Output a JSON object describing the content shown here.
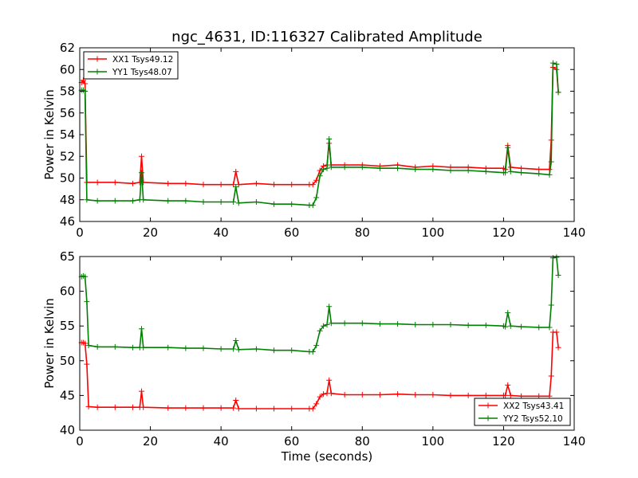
{
  "title": "ngc_4631, ID:116327 Calibrated Amplitude",
  "chart_data": [
    {
      "type": "line",
      "title": "ngc_4631, ID:116327 Calibrated Amplitude",
      "xlabel": "",
      "ylabel": "Power in Kelvin",
      "xlim": [
        0,
        140
      ],
      "ylim": [
        46,
        62
      ],
      "xticks": [
        "0",
        "20",
        "40",
        "60",
        "80",
        "100",
        "120",
        "140"
      ],
      "yticks": [
        "46",
        "48",
        "50",
        "52",
        "54",
        "56",
        "58",
        "60",
        "62"
      ],
      "grid": false,
      "legend_position": "top-left",
      "series": [
        {
          "name": "XX1 Tsys49.12",
          "color": "#ff0000",
          "points": [
            [
              0.5,
              58.8
            ],
            [
              1.0,
              59.0
            ],
            [
              1.5,
              58.7
            ],
            [
              2.0,
              49.6
            ],
            [
              5,
              49.6
            ],
            [
              10,
              49.6
            ],
            [
              15,
              49.5
            ],
            [
              17,
              49.6
            ],
            [
              17.5,
              52.0
            ],
            [
              18,
              49.6
            ],
            [
              25,
              49.5
            ],
            [
              30,
              49.5
            ],
            [
              35,
              49.4
            ],
            [
              40,
              49.4
            ],
            [
              43.5,
              49.4
            ],
            [
              44.2,
              50.6
            ],
            [
              45,
              49.4
            ],
            [
              50,
              49.5
            ],
            [
              55,
              49.4
            ],
            [
              60,
              49.4
            ],
            [
              65,
              49.4
            ],
            [
              66,
              49.4
            ],
            [
              67,
              49.8
            ],
            [
              68,
              50.7
            ],
            [
              69,
              51.1
            ],
            [
              70,
              51.2
            ],
            [
              70.6,
              53.2
            ],
            [
              71.2,
              51.2
            ],
            [
              75,
              51.2
            ],
            [
              80,
              51.2
            ],
            [
              85,
              51.1
            ],
            [
              90,
              51.2
            ],
            [
              95,
              51.0
            ],
            [
              100,
              51.1
            ],
            [
              105,
              51.0
            ],
            [
              110,
              51.0
            ],
            [
              115,
              50.9
            ],
            [
              120,
              50.9
            ],
            [
              120.5,
              50.8
            ],
            [
              121.2,
              53.0
            ],
            [
              122,
              51.0
            ],
            [
              125,
              50.9
            ],
            [
              130,
              50.8
            ],
            [
              133,
              50.8
            ],
            [
              133.5,
              53.5
            ],
            [
              134,
              60.2
            ],
            [
              135,
              60.0
            ],
            [
              135.5,
              57.9
            ]
          ]
        },
        {
          "name": "YY1 Tsys48.07",
          "color": "#008000",
          "points": [
            [
              0.5,
              58.1
            ],
            [
              1.0,
              58.1
            ],
            [
              1.5,
              58.0
            ],
            [
              2.0,
              48.0
            ],
            [
              5,
              47.9
            ],
            [
              10,
              47.9
            ],
            [
              15,
              47.9
            ],
            [
              17,
              48.0
            ],
            [
              17.5,
              50.5
            ],
            [
              18,
              48.0
            ],
            [
              25,
              47.9
            ],
            [
              30,
              47.9
            ],
            [
              35,
              47.8
            ],
            [
              40,
              47.8
            ],
            [
              43.5,
              47.8
            ],
            [
              44.2,
              49.2
            ],
            [
              45,
              47.7
            ],
            [
              50,
              47.8
            ],
            [
              55,
              47.6
            ],
            [
              60,
              47.6
            ],
            [
              65,
              47.5
            ],
            [
              66,
              47.5
            ],
            [
              67,
              48.2
            ],
            [
              68,
              50.2
            ],
            [
              69,
              50.8
            ],
            [
              70,
              50.9
            ],
            [
              70.6,
              53.6
            ],
            [
              71.2,
              51.0
            ],
            [
              75,
              51.0
            ],
            [
              80,
              51.0
            ],
            [
              85,
              50.9
            ],
            [
              90,
              50.9
            ],
            [
              95,
              50.8
            ],
            [
              100,
              50.8
            ],
            [
              105,
              50.7
            ],
            [
              110,
              50.7
            ],
            [
              115,
              50.6
            ],
            [
              120,
              50.5
            ],
            [
              120.5,
              50.5
            ],
            [
              121.2,
              52.8
            ],
            [
              122,
              50.6
            ],
            [
              125,
              50.5
            ],
            [
              130,
              50.4
            ],
            [
              133,
              50.3
            ],
            [
              133.5,
              51.5
            ],
            [
              134,
              60.6
            ],
            [
              135,
              60.5
            ],
            [
              135.5,
              57.9
            ]
          ]
        }
      ]
    },
    {
      "type": "line",
      "title": "",
      "xlabel": "Time (seconds)",
      "ylabel": "Power in Kelvin",
      "xlim": [
        0,
        140
      ],
      "ylim": [
        40,
        65
      ],
      "xticks": [
        "0",
        "20",
        "40",
        "60",
        "80",
        "100",
        "120",
        "140"
      ],
      "yticks": [
        "40",
        "45",
        "50",
        "55",
        "60",
        "65"
      ],
      "grid": false,
      "legend_position": "bottom-right",
      "series": [
        {
          "name": "XX2 Tsys43.41",
          "color": "#ff0000",
          "points": [
            [
              0.5,
              52.6
            ],
            [
              1.0,
              52.6
            ],
            [
              1.5,
              52.5
            ],
            [
              2.0,
              49.5
            ],
            [
              2.5,
              43.4
            ],
            [
              5,
              43.3
            ],
            [
              10,
              43.3
            ],
            [
              15,
              43.3
            ],
            [
              17,
              43.3
            ],
            [
              17.5,
              45.6
            ],
            [
              18,
              43.3
            ],
            [
              25,
              43.2
            ],
            [
              30,
              43.2
            ],
            [
              35,
              43.2
            ],
            [
              40,
              43.2
            ],
            [
              43.5,
              43.2
            ],
            [
              44.2,
              44.3
            ],
            [
              45,
              43.1
            ],
            [
              50,
              43.1
            ],
            [
              55,
              43.1
            ],
            [
              60,
              43.1
            ],
            [
              65,
              43.1
            ],
            [
              66,
              43.1
            ],
            [
              67,
              43.8
            ],
            [
              68,
              44.8
            ],
            [
              69,
              45.2
            ],
            [
              70,
              45.3
            ],
            [
              70.6,
              47.2
            ],
            [
              71.2,
              45.3
            ],
            [
              75,
              45.1
            ],
            [
              80,
              45.1
            ],
            [
              85,
              45.1
            ],
            [
              90,
              45.2
            ],
            [
              95,
              45.1
            ],
            [
              100,
              45.1
            ],
            [
              105,
              45.0
            ],
            [
              110,
              45.0
            ],
            [
              115,
              45.0
            ],
            [
              120,
              45.0
            ],
            [
              120.5,
              45.0
            ],
            [
              121.2,
              46.5
            ],
            [
              122,
              45.0
            ],
            [
              125,
              44.9
            ],
            [
              130,
              44.9
            ],
            [
              133,
              44.9
            ],
            [
              133.5,
              47.8
            ],
            [
              134,
              54.1
            ],
            [
              135,
              54.1
            ],
            [
              135.5,
              51.9
            ]
          ]
        },
        {
          "name": "YY2 Tsys52.10",
          "color": "#008000",
          "points": [
            [
              0.5,
              62.1
            ],
            [
              1.0,
              62.2
            ],
            [
              1.5,
              62.1
            ],
            [
              2.0,
              58.5
            ],
            [
              2.5,
              52.2
            ],
            [
              5,
              52.0
            ],
            [
              10,
              52.0
            ],
            [
              15,
              51.9
            ],
            [
              17,
              51.9
            ],
            [
              17.5,
              54.6
            ],
            [
              18,
              51.9
            ],
            [
              25,
              51.9
            ],
            [
              30,
              51.8
            ],
            [
              35,
              51.8
            ],
            [
              40,
              51.7
            ],
            [
              43.5,
              51.7
            ],
            [
              44.2,
              52.9
            ],
            [
              45,
              51.6
            ],
            [
              50,
              51.7
            ],
            [
              55,
              51.5
            ],
            [
              60,
              51.5
            ],
            [
              65,
              51.3
            ],
            [
              66,
              51.3
            ],
            [
              67,
              52.2
            ],
            [
              68,
              54.3
            ],
            [
              69,
              55.0
            ],
            [
              70,
              55.2
            ],
            [
              70.6,
              57.8
            ],
            [
              71.2,
              55.4
            ],
            [
              75,
              55.4
            ],
            [
              80,
              55.4
            ],
            [
              85,
              55.3
            ],
            [
              90,
              55.3
            ],
            [
              95,
              55.2
            ],
            [
              100,
              55.2
            ],
            [
              105,
              55.2
            ],
            [
              110,
              55.1
            ],
            [
              115,
              55.1
            ],
            [
              120,
              55.0
            ],
            [
              120.5,
              54.9
            ],
            [
              121.2,
              56.9
            ],
            [
              122,
              55.0
            ],
            [
              125,
              54.9
            ],
            [
              130,
              54.8
            ],
            [
              133,
              54.8
            ],
            [
              133.5,
              58.0
            ],
            [
              134,
              64.8
            ],
            [
              135,
              64.9
            ],
            [
              135.5,
              62.3
            ]
          ]
        }
      ]
    }
  ]
}
